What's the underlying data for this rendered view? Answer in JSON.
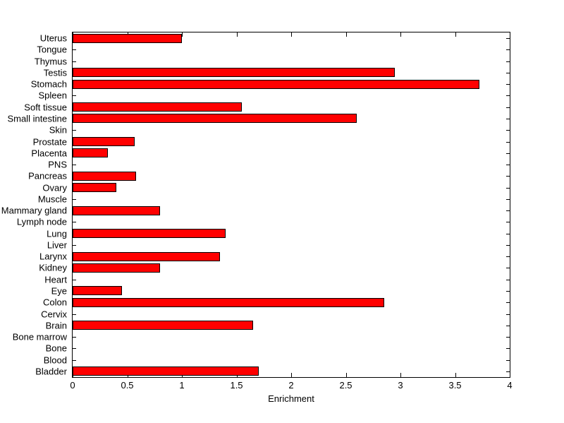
{
  "chart_data": {
    "type": "bar",
    "orientation": "horizontal",
    "title": "",
    "xlabel": "Enrichment",
    "ylabel": "",
    "xlim": [
      0,
      4
    ],
    "grid": false,
    "legend": "none",
    "bar_color": "#ff0000",
    "bar_edge_color": "#000000",
    "xtick_labels": [
      "0",
      "0.5",
      "1",
      "1.5",
      "2",
      "2.5",
      "3",
      "3.5",
      "4"
    ],
    "categories_top_to_bottom": [
      "Uterus",
      "Tongue",
      "Thymus",
      "Testis",
      "Stomach",
      "Spleen",
      "Soft tissue",
      "Small intestine",
      "Skin",
      "Prostate",
      "Placenta",
      "PNS",
      "Pancreas",
      "Ovary",
      "Muscle",
      "Mammary gland",
      "Lymph node",
      "Lung",
      "Liver",
      "Larynx",
      "Kidney",
      "Heart",
      "Eye",
      "Colon",
      "Cervix",
      "Brain",
      "Bone marrow",
      "Bone",
      "Blood",
      "Bladder"
    ],
    "values": [
      1.0,
      0,
      0,
      2.95,
      3.72,
      0,
      1.55,
      2.6,
      0,
      0.57,
      0.32,
      0,
      0.58,
      0.4,
      0,
      0.8,
      0,
      1.4,
      0,
      1.35,
      0.8,
      0,
      0.45,
      2.85,
      0,
      1.65,
      0,
      0,
      0,
      1.7
    ]
  }
}
